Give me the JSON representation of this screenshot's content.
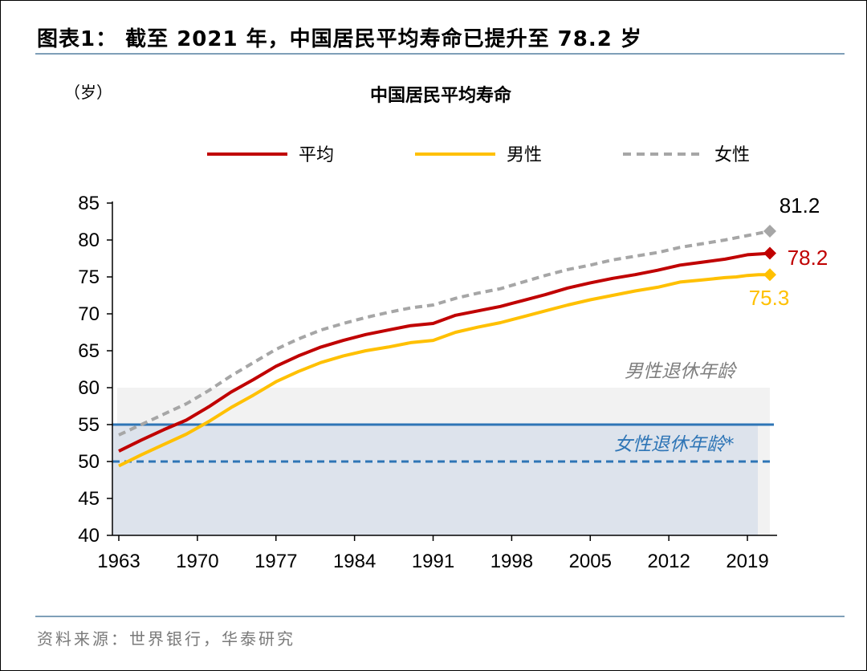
{
  "header": {
    "title": "图表1：  截至 2021 年，中国居民平均寿命已提升至 78.2 岁"
  },
  "footer": {
    "source": "资料来源：世界银行，华泰研究"
  },
  "colors": {
    "avg": "#C00000",
    "male": "#FFC000",
    "female": "#A6A6A6",
    "retire_male": "#2E75B6",
    "retire_female": "#2E75B6",
    "band_male": "#F2F2F2",
    "band_female": "#DDE3EC",
    "annotation_male": "#7F7F7F",
    "annotation_female": "#2E75B6"
  },
  "chart_data": {
    "type": "line",
    "title": "中国居民平均寿命",
    "ylabel": "（岁）",
    "xlabel": "",
    "ylim": [
      40,
      85
    ],
    "yticks": [
      40,
      45,
      50,
      55,
      60,
      65,
      70,
      75,
      80,
      85
    ],
    "xlim": [
      1963,
      2021
    ],
    "xticks": [
      1963,
      1970,
      1977,
      1984,
      1991,
      1998,
      2005,
      2012,
      2019
    ],
    "legend_position": "top",
    "x": [
      1963,
      1965,
      1967,
      1969,
      1971,
      1973,
      1975,
      1977,
      1979,
      1981,
      1983,
      1985,
      1987,
      1989,
      1991,
      1993,
      1995,
      1997,
      1999,
      2001,
      2003,
      2005,
      2007,
      2009,
      2011,
      2013,
      2015,
      2017,
      2018,
      2019,
      2020,
      2021
    ],
    "series": [
      {
        "key": "avg",
        "name": "平均",
        "style": "solid",
        "values": [
          51.4,
          52.9,
          54.3,
          55.6,
          57.4,
          59.4,
          61.1,
          62.9,
          64.3,
          65.5,
          66.4,
          67.2,
          67.8,
          68.4,
          68.7,
          69.8,
          70.4,
          71.0,
          71.8,
          72.6,
          73.5,
          74.2,
          74.8,
          75.3,
          75.9,
          76.6,
          77.0,
          77.4,
          77.7,
          78.0,
          78.1,
          78.2
        ]
      },
      {
        "key": "male",
        "name": "男性",
        "style": "solid",
        "values": [
          49.4,
          50.9,
          52.3,
          53.7,
          55.4,
          57.3,
          59.0,
          60.8,
          62.2,
          63.4,
          64.3,
          65.0,
          65.5,
          66.1,
          66.4,
          67.5,
          68.2,
          68.8,
          69.6,
          70.4,
          71.2,
          71.9,
          72.5,
          73.1,
          73.6,
          74.3,
          74.6,
          74.9,
          75.0,
          75.2,
          75.3,
          75.3
        ]
      },
      {
        "key": "female",
        "name": "女性",
        "style": "dashed",
        "values": [
          53.6,
          55.0,
          56.4,
          57.8,
          59.6,
          61.6,
          63.4,
          65.2,
          66.6,
          67.8,
          68.7,
          69.5,
          70.2,
          70.8,
          71.2,
          72.1,
          72.8,
          73.4,
          74.3,
          75.2,
          76.0,
          76.6,
          77.3,
          77.8,
          78.3,
          79.0,
          79.5,
          80.0,
          80.3,
          80.6,
          80.9,
          81.2
        ]
      }
    ],
    "end_labels": [
      {
        "key": "female",
        "value": 81.2,
        "text": "81.2"
      },
      {
        "key": "avg",
        "value": 78.2,
        "text": "78.2"
      },
      {
        "key": "male",
        "value": 75.3,
        "text": "75.3"
      }
    ],
    "reference_lines": [
      {
        "key": "retire_male",
        "value": 55,
        "style": "solid"
      },
      {
        "key": "retire_female",
        "value": 50,
        "style": "dashed"
      }
    ],
    "bands": [
      {
        "key": "band_male",
        "from": 40,
        "to": 60,
        "label": "男性退休年龄",
        "x_from": 1963,
        "x_to": 2021
      },
      {
        "key": "band_female",
        "from": 40,
        "to": 55,
        "label": "女性退休年龄*",
        "x_from": 1963,
        "x_to": 2020.5
      }
    ]
  }
}
